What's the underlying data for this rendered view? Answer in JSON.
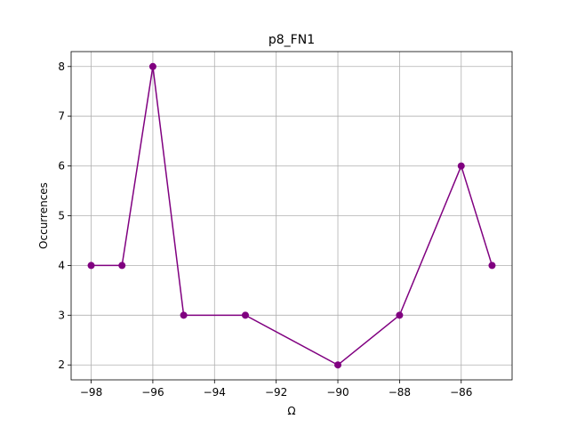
{
  "chart_data": {
    "type": "line",
    "title": "p8_FN1",
    "xlabel": "Ω",
    "ylabel": "Occurrences",
    "x": [
      -98,
      -97,
      -96,
      -95,
      -93,
      -90,
      -88,
      -86,
      -85
    ],
    "series": [
      {
        "values": [
          4,
          4,
          8,
          3,
          3,
          2,
          3,
          6,
          4
        ],
        "color": "#800080",
        "marker": "circle"
      }
    ],
    "xlim": [
      -98.65,
      -84.35
    ],
    "ylim": [
      1.7,
      8.3
    ],
    "xticks": [
      -98,
      -96,
      -94,
      -92,
      -90,
      -88,
      -86
    ],
    "yticks": [
      2,
      3,
      4,
      5,
      6,
      7,
      8
    ],
    "grid": true,
    "colors": {
      "line": "#800080",
      "grid": "#b0b0b0",
      "axes": "#000000"
    }
  }
}
